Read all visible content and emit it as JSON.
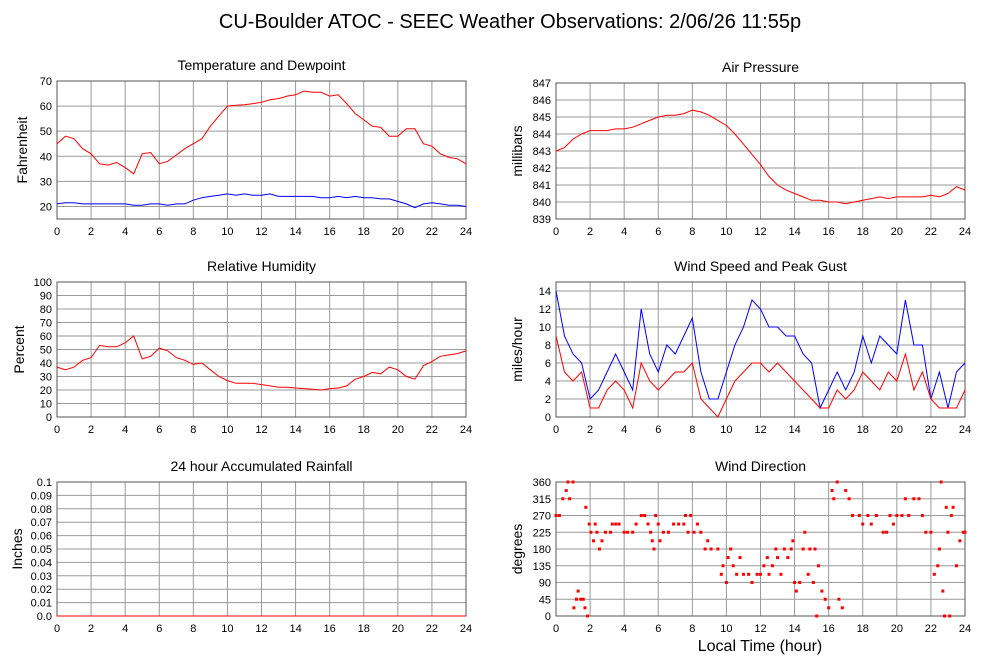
{
  "title": "CU-Boulder ATOC - SEEC Weather Observations: 2/06/26 11:55p",
  "xlabel_bottom": "Local Time (hour)",
  "chart_data": [
    {
      "type": "line",
      "title": "Temperature and Dewpoint",
      "ylabel": "Fahrenheit",
      "xlim": [
        0,
        24
      ],
      "ylim": [
        15,
        70
      ],
      "xticks": [
        "0",
        "2",
        "4",
        "6",
        "8",
        "10",
        "12",
        "14",
        "16",
        "18",
        "20",
        "22",
        "24"
      ],
      "yticks": [
        "20",
        "30",
        "40",
        "50",
        "60",
        "70"
      ],
      "grid": true,
      "x_step": 0.5,
      "series": [
        {
          "color": "#ff0000",
          "values": [
            45,
            48,
            47,
            43,
            41,
            37,
            36.5,
            37.5,
            35.5,
            33,
            41,
            41.5,
            37,
            38,
            40.5,
            43,
            45,
            47,
            52,
            56,
            60,
            60.3,
            60.5,
            61,
            61.5,
            62.5,
            63,
            64,
            64.5,
            66,
            65.5,
            65.5,
            64,
            64.5,
            61,
            57,
            54.5,
            52,
            51.5,
            48,
            48,
            51,
            51,
            45,
            44,
            41,
            39.5,
            39,
            37
          ]
        },
        {
          "color": "#0000ff",
          "values": [
            21,
            21.5,
            21.5,
            21,
            21,
            21,
            21,
            21,
            21,
            20.5,
            20.5,
            21,
            21,
            20.5,
            21,
            21,
            22.5,
            23.5,
            24,
            24.5,
            25,
            24.5,
            25,
            24.5,
            24.5,
            25,
            24,
            24,
            24,
            24,
            24,
            23.5,
            23.5,
            24,
            23.5,
            24,
            23.5,
            23.5,
            23,
            23,
            22,
            21,
            19.5,
            21,
            21.5,
            21,
            20.5,
            20.5,
            20
          ]
        }
      ]
    },
    {
      "type": "line",
      "title": "Air Pressure",
      "ylabel": "millibars",
      "xlim": [
        0,
        24
      ],
      "ylim": [
        839,
        847
      ],
      "xticks": [
        "0",
        "2",
        "4",
        "6",
        "8",
        "10",
        "12",
        "14",
        "16",
        "18",
        "20",
        "22",
        "24"
      ],
      "yticks": [
        "839",
        "840",
        "841",
        "842",
        "843",
        "844",
        "845",
        "846",
        "847"
      ],
      "grid": true,
      "x_step": 0.5,
      "series": [
        {
          "color": "#ff0000",
          "values": [
            843,
            843.2,
            843.7,
            844,
            844.2,
            844.2,
            844.2,
            844.3,
            844.3,
            844.4,
            844.6,
            844.8,
            845,
            845.1,
            845.1,
            845.2,
            845.4,
            845.3,
            845.1,
            844.8,
            844.5,
            844,
            843.4,
            842.8,
            842.2,
            841.5,
            841,
            840.7,
            840.5,
            840.3,
            840.1,
            840.1,
            840,
            840,
            839.9,
            840,
            840.1,
            840.2,
            840.3,
            840.2,
            840.3,
            840.3,
            840.3,
            840.3,
            840.4,
            840.3,
            840.5,
            840.9,
            840.7
          ]
        }
      ]
    },
    {
      "type": "line",
      "title": "Relative Humidity",
      "ylabel": "Percent",
      "xlim": [
        0,
        24
      ],
      "ylim": [
        0,
        100
      ],
      "xticks": [
        "0",
        "2",
        "4",
        "6",
        "8",
        "10",
        "12",
        "14",
        "16",
        "18",
        "20",
        "22",
        "24"
      ],
      "yticks": [
        "0",
        "10",
        "20",
        "30",
        "40",
        "50",
        "60",
        "70",
        "80",
        "90",
        "100"
      ],
      "grid": true,
      "x_step": 0.5,
      "series": [
        {
          "color": "#ff0000",
          "values": [
            37,
            35,
            37,
            42,
            44,
            53,
            52,
            52,
            55,
            60,
            43,
            45,
            51,
            49,
            44,
            42,
            39,
            40,
            35,
            30,
            27,
            25,
            25,
            25,
            24,
            23,
            22,
            22,
            21.5,
            21,
            20.5,
            20,
            21,
            21.5,
            23,
            28,
            30,
            33,
            32,
            37,
            35,
            30,
            28,
            38,
            41,
            45,
            46,
            47,
            49
          ]
        }
      ]
    },
    {
      "type": "line",
      "title": "Wind Speed and Peak Gust",
      "ylabel": "miles/hour",
      "xlim": [
        0,
        24
      ],
      "ylim": [
        0,
        15
      ],
      "xticks": [
        "0",
        "2",
        "4",
        "6",
        "8",
        "10",
        "12",
        "14",
        "16",
        "18",
        "20",
        "22",
        "24"
      ],
      "yticks": [
        "0",
        "2",
        "4",
        "6",
        "8",
        "10",
        "12",
        "14"
      ],
      "grid": true,
      "x_step": 0.5,
      "series": [
        {
          "color": "#0000ff",
          "values": [
            14,
            9,
            7,
            6,
            2,
            3,
            5,
            7,
            5,
            3,
            12,
            7,
            5,
            8,
            7,
            9,
            11,
            5,
            2,
            2,
            5,
            8,
            10,
            13,
            12,
            10,
            10,
            9,
            9,
            7,
            6,
            1,
            3,
            5,
            3,
            5,
            9,
            6,
            9,
            8,
            7,
            13,
            8,
            8,
            2,
            5,
            1,
            5,
            6
          ]
        },
        {
          "color": "#ff0000",
          "values": [
            9,
            5,
            4,
            5,
            1,
            1,
            3,
            4,
            3,
            1,
            6,
            4,
            3,
            4,
            5,
            5,
            6,
            2,
            1,
            0,
            2,
            4,
            5,
            6,
            6,
            5,
            6,
            5,
            4,
            3,
            2,
            1,
            1,
            3,
            2,
            3,
            5,
            4,
            3,
            5,
            4,
            7,
            3,
            5,
            2,
            1,
            1,
            1,
            3
          ]
        }
      ]
    },
    {
      "type": "line",
      "title": "24 hour Accumulated Rainfall",
      "ylabel": "Inches",
      "xlim": [
        0,
        24
      ],
      "ylim": [
        0,
        0.1
      ],
      "xticks": [
        "0",
        "2",
        "4",
        "6",
        "8",
        "10",
        "12",
        "14",
        "16",
        "18",
        "20",
        "22",
        "24"
      ],
      "yticks": [
        "0.0",
        "0.01",
        "0.02",
        "0.03",
        "0.04",
        "0.05",
        "0.06",
        "0.07",
        "0.08",
        "0.09",
        "0.1"
      ],
      "grid": true,
      "x_step": 24,
      "series": [
        {
          "color": "#ff0000",
          "values": [
            0,
            0
          ]
        }
      ]
    },
    {
      "type": "scatter",
      "title": "Wind Direction",
      "ylabel": "degrees",
      "xlabel": "Local Time (hour)",
      "xlim": [
        0,
        24
      ],
      "ylim": [
        0,
        360
      ],
      "xticks": [
        "0",
        "2",
        "4",
        "6",
        "8",
        "10",
        "12",
        "14",
        "16",
        "18",
        "20",
        "22",
        "24"
      ],
      "yticks": [
        "0",
        "45",
        "90",
        "135",
        "180",
        "225",
        "270",
        "315",
        "360"
      ],
      "grid": true,
      "series": [
        {
          "color": "#ff0000",
          "points": [
            [
              0,
              270
            ],
            [
              0.2,
              270
            ],
            [
              0.4,
              315
            ],
            [
              0.6,
              337
            ],
            [
              0.7,
              360
            ],
            [
              0.8,
              315
            ],
            [
              1.0,
              360
            ],
            [
              1.05,
              22
            ],
            [
              1.2,
              45
            ],
            [
              1.3,
              67
            ],
            [
              1.45,
              45
            ],
            [
              1.6,
              45
            ],
            [
              1.7,
              22
            ],
            [
              1.75,
              292
            ],
            [
              1.85,
              0
            ],
            [
              1.95,
              247
            ],
            [
              2.05,
              225
            ],
            [
              2.2,
              202
            ],
            [
              2.3,
              247
            ],
            [
              2.4,
              225
            ],
            [
              2.55,
              180
            ],
            [
              2.7,
              202
            ],
            [
              2.9,
              225
            ],
            [
              3.2,
              225
            ],
            [
              3.3,
              247
            ],
            [
              3.5,
              247
            ],
            [
              3.7,
              247
            ],
            [
              4.0,
              225
            ],
            [
              4.2,
              225
            ],
            [
              4.5,
              225
            ],
            [
              4.7,
              247
            ],
            [
              5.0,
              270
            ],
            [
              5.2,
              270
            ],
            [
              5.4,
              247
            ],
            [
              5.55,
              225
            ],
            [
              5.65,
              202
            ],
            [
              5.75,
              180
            ],
            [
              5.85,
              270
            ],
            [
              6.0,
              247
            ],
            [
              6.1,
              202
            ],
            [
              6.3,
              225
            ],
            [
              6.6,
              225
            ],
            [
              6.9,
              247
            ],
            [
              7.2,
              247
            ],
            [
              7.5,
              247
            ],
            [
              7.6,
              270
            ],
            [
              7.75,
              225
            ],
            [
              7.9,
              270
            ],
            [
              8.1,
              225
            ],
            [
              8.3,
              247
            ],
            [
              8.5,
              225
            ],
            [
              8.75,
              180
            ],
            [
              8.9,
              202
            ],
            [
              9.1,
              180
            ],
            [
              9.5,
              180
            ],
            [
              9.7,
              112
            ],
            [
              9.8,
              135
            ],
            [
              10.0,
              90
            ],
            [
              10.1,
              157
            ],
            [
              10.25,
              180
            ],
            [
              10.4,
              135
            ],
            [
              10.6,
              112
            ],
            [
              10.8,
              157
            ],
            [
              11.0,
              112
            ],
            [
              11.3,
              112
            ],
            [
              11.5,
              90
            ],
            [
              11.8,
              112
            ],
            [
              12.0,
              112
            ],
            [
              12.2,
              135
            ],
            [
              12.4,
              157
            ],
            [
              12.5,
              112
            ],
            [
              12.7,
              135
            ],
            [
              12.9,
              180
            ],
            [
              13.0,
              157
            ],
            [
              13.2,
              112
            ],
            [
              13.4,
              180
            ],
            [
              13.6,
              157
            ],
            [
              13.8,
              180
            ],
            [
              13.9,
              202
            ],
            [
              14.0,
              90
            ],
            [
              14.1,
              67
            ],
            [
              14.3,
              90
            ],
            [
              14.5,
              180
            ],
            [
              14.6,
              225
            ],
            [
              14.8,
              112
            ],
            [
              14.9,
              180
            ],
            [
              15.1,
              90
            ],
            [
              15.2,
              180
            ],
            [
              15.3,
              0
            ],
            [
              15.4,
              135
            ],
            [
              15.6,
              67
            ],
            [
              15.8,
              45
            ],
            [
              16.0,
              22
            ],
            [
              16.2,
              337
            ],
            [
              16.3,
              315
            ],
            [
              16.5,
              360
            ],
            [
              16.6,
              45
            ],
            [
              16.8,
              22
            ],
            [
              17.0,
              337
            ],
            [
              17.2,
              315
            ],
            [
              17.4,
              270
            ],
            [
              17.8,
              270
            ],
            [
              18.0,
              247
            ],
            [
              18.3,
              270
            ],
            [
              18.5,
              247
            ],
            [
              18.8,
              270
            ],
            [
              19.2,
              225
            ],
            [
              19.4,
              225
            ],
            [
              19.6,
              270
            ],
            [
              19.8,
              247
            ],
            [
              20.0,
              270
            ],
            [
              20.3,
              270
            ],
            [
              20.5,
              315
            ],
            [
              20.7,
              270
            ],
            [
              21.0,
              315
            ],
            [
              21.3,
              315
            ],
            [
              21.5,
              270
            ],
            [
              21.7,
              225
            ],
            [
              22.0,
              225
            ],
            [
              22.2,
              112
            ],
            [
              22.4,
              135
            ],
            [
              22.5,
              180
            ],
            [
              22.6,
              360
            ],
            [
              22.7,
              67
            ],
            [
              22.8,
              0
            ],
            [
              22.9,
              292
            ],
            [
              23.0,
              225
            ],
            [
              23.1,
              0
            ],
            [
              23.2,
              270
            ],
            [
              23.3,
              292
            ],
            [
              23.5,
              135
            ],
            [
              23.7,
              202
            ],
            [
              23.9,
              225
            ],
            [
              24,
              225
            ]
          ]
        }
      ]
    }
  ]
}
